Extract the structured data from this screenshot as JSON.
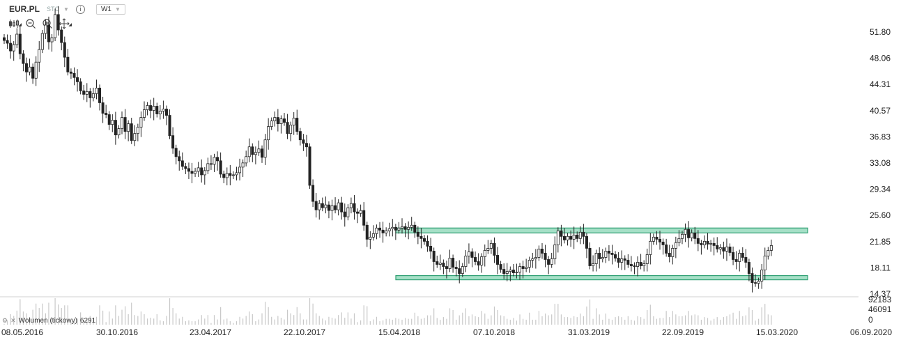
{
  "header": {
    "symbol": "EUR.PL",
    "exchange": "STC",
    "timeframe": "W1",
    "info_icon": "info-icon"
  },
  "toolbar": {
    "icons": [
      "candlestick-icon",
      "zoom-out-icon",
      "zoom-in-icon",
      "move-icon"
    ]
  },
  "volume_panel": {
    "label": "Wolumen (tickowy)",
    "value": "6291",
    "ticks": [
      "92183",
      "46091",
      "0"
    ]
  },
  "colors": {
    "candle": "#222222",
    "zone_fill": "#a6e0c7",
    "zone_stroke": "#2f9f73",
    "volume": "#c8c8c8",
    "axis_text": "#222222",
    "grid": "#e6e6e6"
  },
  "chart_data": {
    "type": "candlestick",
    "series": [
      {
        "values_close": [
          50.6,
          50.2,
          49.1,
          50.0,
          51.5,
          48.7,
          47.3,
          46.1,
          46.8,
          45.2,
          47.5,
          49.3,
          51.6,
          52.8,
          50.4,
          51.0,
          54.3,
          52.1,
          50.3,
          48.2,
          46.1,
          45.9,
          45.3,
          44.7,
          43.4,
          42.9,
          43.3,
          42.4,
          43.0,
          43.8,
          41.7,
          40.2,
          40.0,
          38.6,
          39.2,
          37.1,
          38.0,
          39.6,
          37.6,
          38.7,
          36.3,
          37.3,
          38.2,
          39.6,
          40.7,
          41.3,
          40.6,
          41.2,
          40.1,
          40.5,
          40.8,
          39.9,
          37.0,
          35.2,
          34.0,
          33.4,
          32.6,
          32.3,
          31.9,
          31.6,
          31.9,
          32.4,
          31.4,
          32.0,
          33.0,
          32.9,
          33.9,
          33.4,
          31.5,
          31.0,
          31.6,
          31.3,
          31.4,
          31.7,
          32.5,
          33.1,
          34.0,
          35.4,
          34.3,
          34.6,
          35.1,
          33.9,
          36.4,
          38.3,
          39.1,
          39.6,
          38.7,
          39.4,
          38.9,
          37.3,
          38.5,
          39.5,
          37.6,
          36.4,
          35.9,
          35.4,
          29.9,
          27.6,
          26.4,
          27.3,
          26.7,
          27.1,
          26.3,
          27.0,
          26.4,
          27.4,
          26.1,
          25.4,
          26.7,
          27.3,
          26.1,
          25.9,
          26.3,
          24.2,
          22.2,
          22.5,
          23.0,
          23.8,
          23.5,
          23.1,
          23.4,
          23.7,
          23.9,
          23.5,
          23.8,
          24.0,
          23.6,
          23.9,
          24.2,
          23.2,
          22.6,
          22.3,
          21.9,
          21.2,
          20.5,
          19.0,
          18.6,
          18.8,
          18.3,
          18.0,
          19.5,
          18.2,
          18.0,
          17.3,
          18.3,
          19.8,
          20.4,
          19.6,
          19.0,
          18.5,
          19.7,
          20.6,
          20.9,
          21.6,
          19.9,
          18.6,
          17.9,
          17.3,
          17.6,
          17.8,
          17.4,
          17.5,
          18.3,
          18.0,
          18.2,
          19.2,
          19.4,
          19.6,
          20.8,
          20.2,
          19.3,
          18.6,
          19.4,
          21.4,
          23.4,
          22.6,
          22.1,
          22.6,
          22.2,
          22.8,
          22.3,
          23.2,
          22.6,
          20.9,
          18.4,
          18.7,
          20.2,
          19.4,
          19.6,
          20.5,
          20.2,
          20.0,
          19.5,
          18.9,
          19.4,
          19.2,
          18.6,
          18.4,
          18.3,
          18.9,
          18.4,
          18.7,
          20.0,
          21.9,
          22.5,
          22.2,
          21.8,
          21.4,
          20.2,
          19.7,
          20.9,
          21.7,
          22.3,
          22.9,
          23.6,
          22.4,
          23.1,
          22.3,
          21.6,
          21.4,
          21.9,
          21.5,
          21.6,
          21.3,
          20.8,
          21.0,
          20.5,
          21.1,
          20.3,
          19.3,
          19.0,
          20.2,
          19.6,
          18.9,
          17.3,
          16.0,
          15.9,
          16.2,
          17.8,
          19.8,
          20.6,
          21.3
        ]
      }
    ],
    "x_tick_labels": [
      "08.05.2016",
      "30.10.2016",
      "23.04.2017",
      "22.10.2017",
      "15.04.2018",
      "07.10.2018",
      "31.03.2019",
      "22.09.2019",
      "15.03.2020",
      "06.09.2020"
    ],
    "y_tick_labels": [
      "51.80",
      "48.06",
      "44.31",
      "40.57",
      "36.83",
      "33.08",
      "29.34",
      "25.60",
      "21.85",
      "18.11",
      "14.37"
    ],
    "ylim": [
      14.37,
      51.8
    ],
    "zones": [
      {
        "low": 23.1,
        "high": 23.8
      },
      {
        "low": 16.4,
        "high": 17.0
      }
    ]
  }
}
